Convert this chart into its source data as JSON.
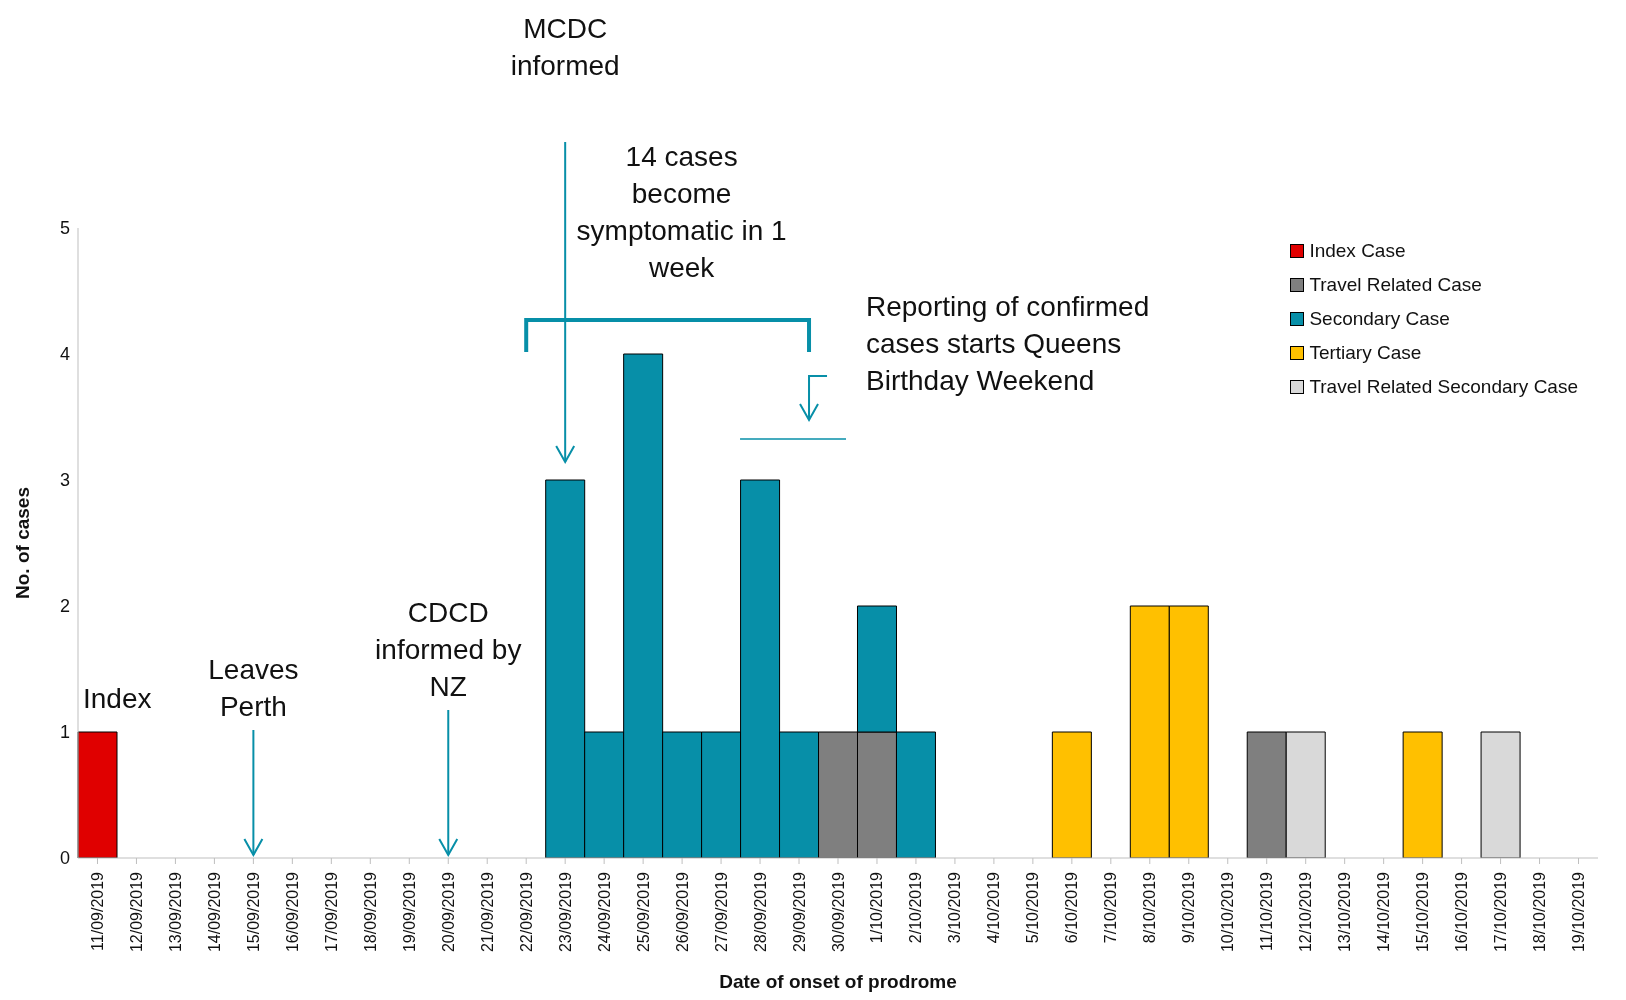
{
  "chart_data": {
    "type": "bar",
    "stacked": true,
    "xlabel": "Date of onset of prodrome",
    "ylabel": "No. of cases",
    "categories": [
      "11/09/2019",
      "12/09/2019",
      "13/09/2019",
      "14/09/2019",
      "15/09/2019",
      "16/09/2019",
      "17/09/2019",
      "18/09/2019",
      "19/09/2019",
      "20/09/2019",
      "21/09/2019",
      "22/09/2019",
      "23/09/2019",
      "24/09/2019",
      "25/09/2019",
      "26/09/2019",
      "27/09/2019",
      "28/09/2019",
      "29/09/2019",
      "30/09/2019",
      "1/10/2019",
      "2/10/2019",
      "3/10/2019",
      "4/10/2019",
      "5/10/2019",
      "6/10/2019",
      "7/10/2019",
      "8/10/2019",
      "9/10/2019",
      "10/10/2019",
      "11/10/2019",
      "12/10/2019",
      "13/10/2019",
      "14/10/2019",
      "15/10/2019",
      "16/10/2019",
      "17/10/2019",
      "18/10/2019",
      "19/10/2019"
    ],
    "series": [
      {
        "name": "Index Case",
        "color": "#e00000",
        "values": [
          1,
          0,
          0,
          0,
          0,
          0,
          0,
          0,
          0,
          0,
          0,
          0,
          0,
          0,
          0,
          0,
          0,
          0,
          0,
          0,
          0,
          0,
          0,
          0,
          0,
          0,
          0,
          0,
          0,
          0,
          0,
          0,
          0,
          0,
          0,
          0,
          0,
          0,
          0
        ]
      },
      {
        "name": "Travel Related Case",
        "color": "#7f7f7f",
        "values": [
          0,
          0,
          0,
          0,
          0,
          0,
          0,
          0,
          0,
          0,
          0,
          0,
          0,
          0,
          0,
          0,
          0,
          0,
          0,
          1,
          1,
          0,
          0,
          0,
          0,
          0,
          0,
          0,
          0,
          0,
          1,
          0,
          0,
          0,
          0,
          0,
          0,
          0,
          0
        ]
      },
      {
        "name": "Secondary Case",
        "color": "#078fa8",
        "values": [
          0,
          0,
          0,
          0,
          0,
          0,
          0,
          0,
          0,
          0,
          0,
          0,
          3,
          1,
          4,
          1,
          1,
          3,
          1,
          0,
          1,
          1,
          0,
          0,
          0,
          0,
          0,
          0,
          0,
          0,
          0,
          0,
          0,
          0,
          0,
          0,
          0,
          0,
          0
        ]
      },
      {
        "name": "Tertiary Case",
        "color": "#ffc000",
        "values": [
          0,
          0,
          0,
          0,
          0,
          0,
          0,
          0,
          0,
          0,
          0,
          0,
          0,
          0,
          0,
          0,
          0,
          0,
          0,
          0,
          0,
          0,
          0,
          0,
          0,
          1,
          0,
          2,
          2,
          0,
          0,
          0,
          0,
          0,
          1,
          0,
          0,
          0,
          0
        ]
      },
      {
        "name": "Travel Related Secondary Case",
        "color": "#d9d9d9",
        "values": [
          0,
          0,
          0,
          0,
          0,
          0,
          0,
          0,
          0,
          0,
          0,
          0,
          0,
          0,
          0,
          0,
          0,
          0,
          0,
          0,
          0,
          0,
          0,
          0,
          0,
          0,
          0,
          0,
          0,
          0,
          0,
          1,
          0,
          0,
          0,
          0,
          1,
          0,
          0
        ]
      }
    ],
    "ylim": [
      0,
      5
    ],
    "yticks": [
      0,
      1,
      2,
      3,
      4,
      5
    ],
    "legend": "top right",
    "annotations": [
      {
        "text": "Index",
        "x": "11/09/2019",
        "y": 1
      },
      {
        "text": "Leaves\nPerth",
        "x": "15/09/2019",
        "y": 0
      },
      {
        "text": "CDCD\ninformed by\nNZ",
        "x": "20/09/2019",
        "y": 0
      },
      "MCDC\ninformed",
      "14 cases\nbecome\nsymptomatic in 1\nweek",
      "Reporting of confirmed\ncases starts Queens\nBirthday Weekend"
    ]
  }
}
